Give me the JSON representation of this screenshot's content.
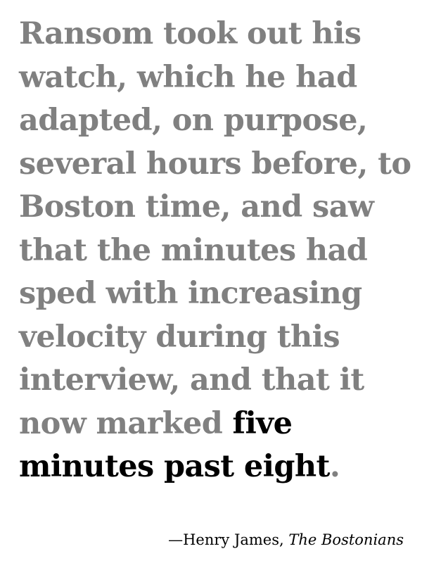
{
  "quote": {
    "lines": [
      "Ransom took out his",
      "watch, which he had",
      "adapted, on purpose,",
      "several hours before, to",
      "Boston time, and saw",
      "that the minutes had",
      "sped with increasing",
      "velocity during this",
      "interview, and that it"
    ],
    "line10_plain": "now marked ",
    "line10_emph": "five",
    "line11_emph": "minutes past eight",
    "line11_end": "."
  },
  "attribution": {
    "prefix": "—Henry James, ",
    "title": "The Bostonians"
  },
  "colors": {
    "body_text": "#808080",
    "emphasis_text": "#000000",
    "background": "#ffffff"
  }
}
